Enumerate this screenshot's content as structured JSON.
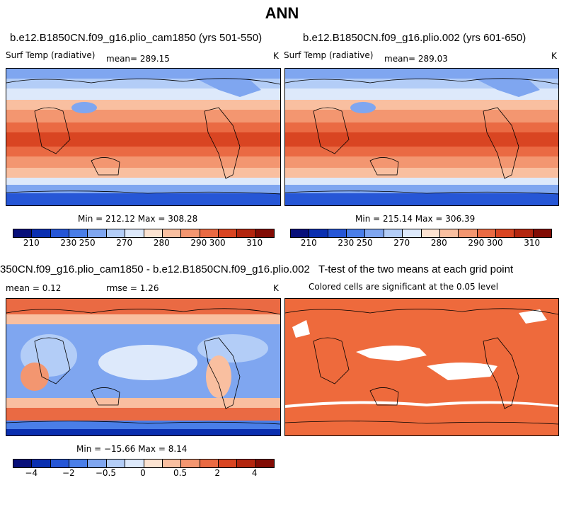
{
  "page_title": "ANN",
  "panels": [
    {
      "title": "b.e12.B1850CN.f09_g16.plio_cam1850 (yrs 501-550)",
      "variable": "Surf Temp (radiative)",
      "mean_text": "mean= 289.15",
      "units": "K",
      "minmax": "Min = 212.12  Max = 308.28",
      "colorbar_labels": [
        "210",
        "230",
        "250",
        "270",
        "280",
        "290",
        "300",
        "310"
      ]
    },
    {
      "title": "b.e12.B1850CN.f09_g16.plio.002 (yrs 601-650)",
      "variable": "Surf Temp (radiative)",
      "mean_text": "mean= 289.03",
      "units": "K",
      "minmax": "Min = 215.14  Max = 306.39",
      "colorbar_labels": [
        "210",
        "230",
        "250",
        "270",
        "280",
        "290",
        "300",
        "310"
      ]
    },
    {
      "title": "350CN.f09_g16.plio_cam1850 - b.e12.B1850CN.f09_g16.plio.002",
      "mean_text": "mean =    0.12",
      "rmse_text": "rmse =    1.26",
      "units": "K",
      "minmax": "Min = −15.66  Max =    8.14",
      "colorbar_labels": [
        "−4",
        "−2",
        "−0.5",
        "0",
        "0.5",
        "2",
        "4"
      ]
    },
    {
      "title": "T-test of the two means at each grid point",
      "subtitle": "Colored cells are significant at the 0.05 level"
    }
  ],
  "colors": {
    "temp_scale": [
      "#08107a",
      "#0a2fb0",
      "#2656d6",
      "#4a7ee8",
      "#7fa6f0",
      "#b3cdf7",
      "#dde9fb",
      "#fce3d1",
      "#f9bfa0",
      "#f39670",
      "#ea6a43",
      "#d94522",
      "#b3260f",
      "#820c05"
    ],
    "diff_scale": [
      "#08107a",
      "#0a2fb0",
      "#2656d6",
      "#4a7ee8",
      "#7fa6f0",
      "#b3cdf7",
      "#dde9fb",
      "#fce3d1",
      "#f9bfa0",
      "#f39670",
      "#ea6a43",
      "#d94522",
      "#b3260f",
      "#820c05"
    ],
    "significant": "#ee6a3c"
  }
}
